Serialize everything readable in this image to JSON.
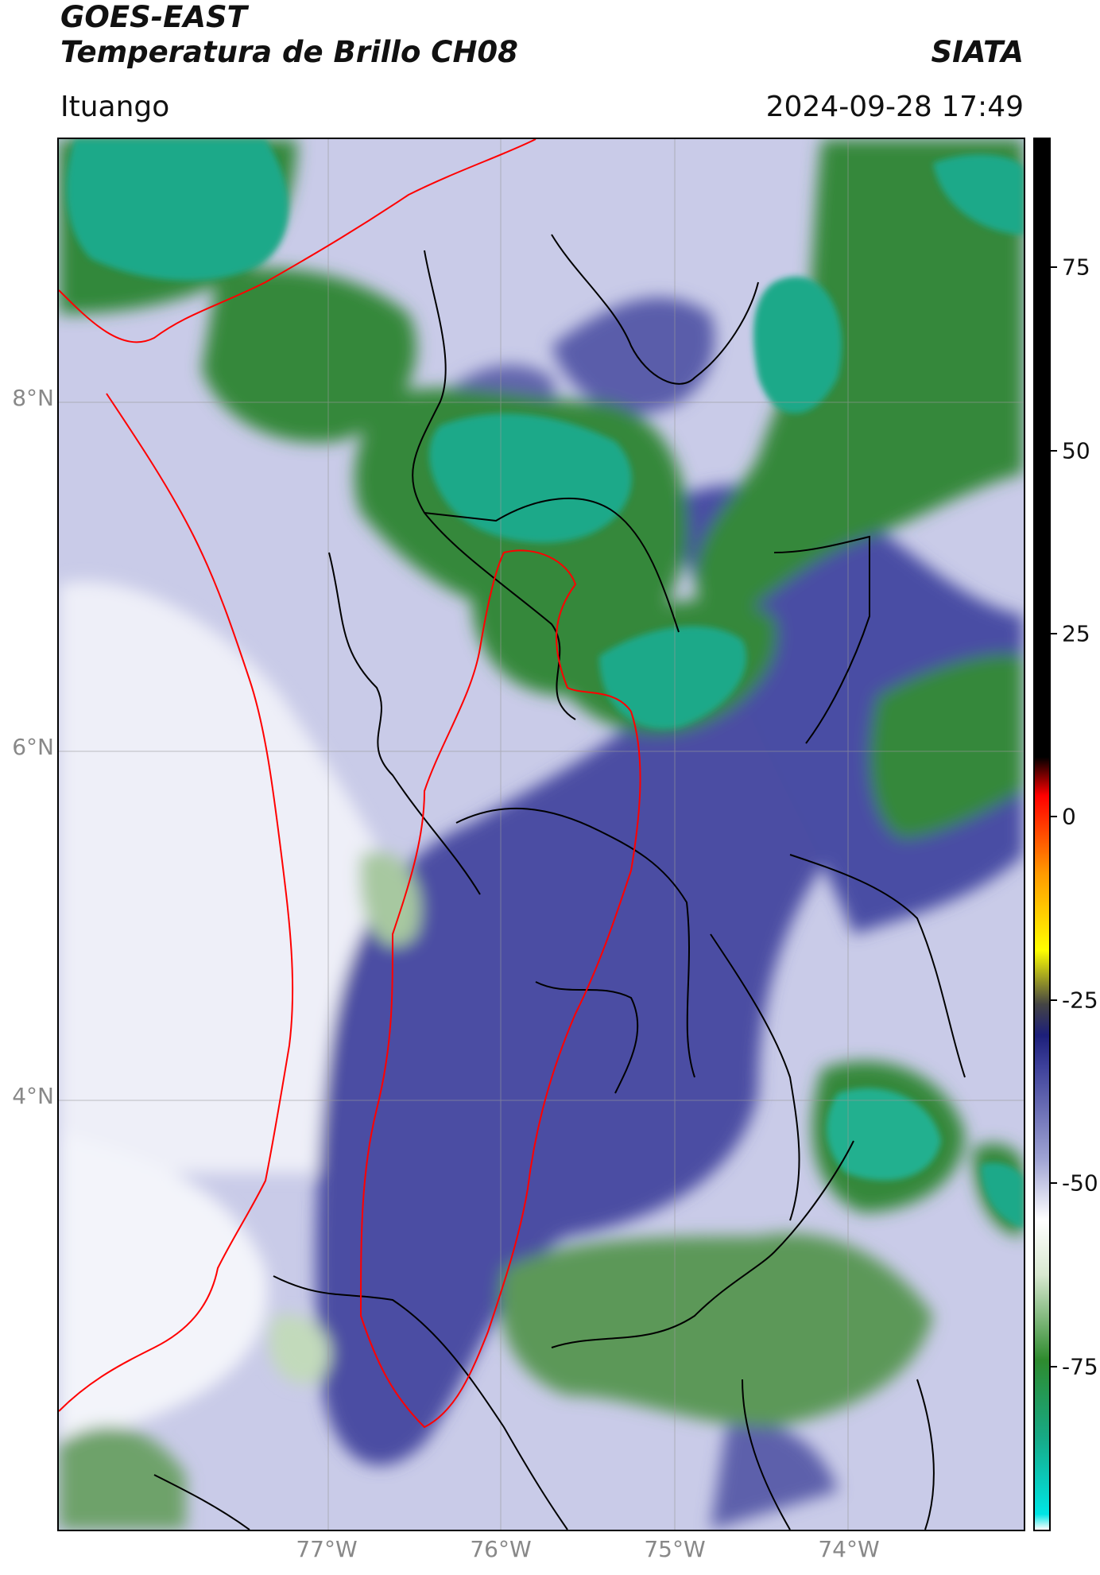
{
  "header": {
    "satellite": "GOES-EAST",
    "product": "Temperatura de Brillo CH08",
    "brand": "SIATA",
    "region": "Ituango",
    "datetime": "2024-09-28 17:49"
  },
  "map": {
    "lat_ticks": [
      "8°N",
      "6°N",
      "4°N"
    ],
    "lon_ticks": [
      "77°W",
      "76°W",
      "75°W",
      "74°W"
    ]
  },
  "colorbar": {
    "ticks": [
      "75",
      "50",
      "25",
      "0",
      "-25",
      "-50",
      "-75"
    ],
    "stops": [
      {
        "value": -90,
        "color": "#ffffff"
      },
      {
        "value": -88,
        "color": "#00e5e5"
      },
      {
        "value": -78,
        "color": "#17a985"
      },
      {
        "value": -68,
        "color": "#2e8b2e"
      },
      {
        "value": -57,
        "color": "#d8e8d0"
      },
      {
        "value": -50,
        "color": "#ffffff"
      },
      {
        "value": -42,
        "color": "#9fa3d3"
      },
      {
        "value": -30,
        "color": "#3d409a"
      },
      {
        "value": -26,
        "color": "#1d1f7a"
      },
      {
        "value": -22,
        "color": "#444444"
      },
      {
        "value": -15,
        "color": "#ffff00"
      },
      {
        "value": -5,
        "color": "#ff9900"
      },
      {
        "value": 5,
        "color": "#ff0000"
      },
      {
        "value": 10,
        "color": "#000000"
      },
      {
        "value": 90,
        "color": "#000000"
      }
    ]
  },
  "colors": {
    "cold_top": "#1aa989",
    "green": "#35883a",
    "blue": "#4548a0",
    "light_blue": "#b9bce0",
    "white": "#ffffff",
    "border_red": "#ff0000",
    "border_black": "#000000"
  }
}
